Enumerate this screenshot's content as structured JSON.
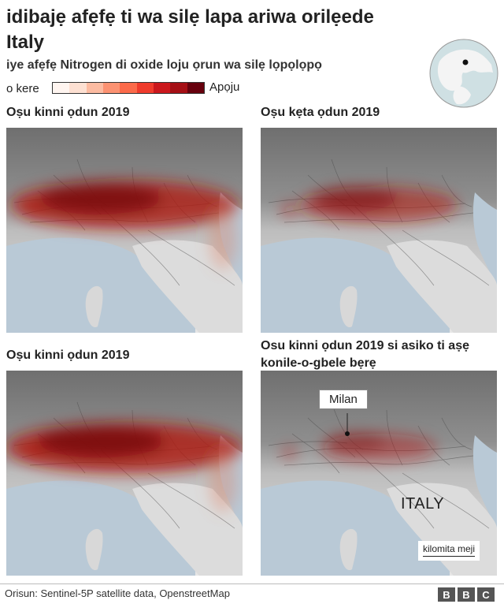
{
  "header": {
    "title": "idibajẹ afẹfẹ ti wa silẹ lapa ariwa orilẹede Italy",
    "subtitle": "iye afẹfẹ Nitrogen di oxide loju ọrun wa silẹ lọpọlọpọ"
  },
  "legend": {
    "low_label": "o kere",
    "high_label": "Apọju",
    "colors": [
      "#fff5f0",
      "#fde0d2",
      "#fcbba1",
      "#fc9272",
      "#fb6a4a",
      "#ef3b2c",
      "#cb181d",
      "#a50f15",
      "#67000d"
    ]
  },
  "panels": [
    {
      "title": "Oṣu kinni ọdun 2019",
      "intensity": 0.95
    },
    {
      "title": "Oṣu kẹta ọdun 2019",
      "intensity": 0.55
    },
    {
      "title": "Oṣu kinni ọdun 2019",
      "intensity": 1.0
    },
    {
      "title": "Osu kinni ọdun 2019 si asiko ti aṣẹ konile-o-gbele bẹrẹ",
      "intensity": 0.3,
      "city_label": "Milan",
      "country_label": "ITALY",
      "scale_label": "kilomita meji"
    }
  ],
  "footer": {
    "source": "Orisun: Sentinel-5P satellite data, OpenstreetMap",
    "logo": [
      "B",
      "B",
      "C"
    ]
  },
  "colors": {
    "sea": "#b9c9d6",
    "land_low": "#e6e6e6",
    "mountain": "#8f8f8f",
    "pollution": "#b01a10"
  }
}
